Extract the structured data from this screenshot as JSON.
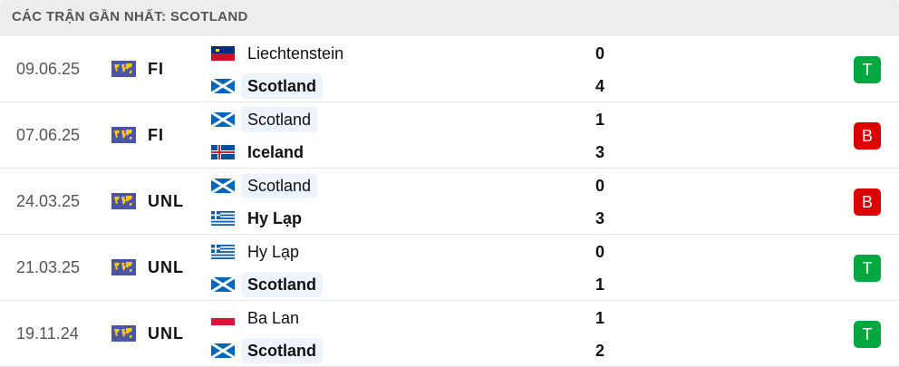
{
  "header": {
    "title": "CÁC TRẬN GẦN NHẤT: SCOTLAND"
  },
  "colors": {
    "win": "#00a83f",
    "loss": "#dd0000",
    "highlight": "#eef4fd"
  },
  "matches": [
    {
      "date": "09.06.25",
      "competition": "FI",
      "competition_icon": "world-map-icon",
      "home": {
        "name": "Liechtenstein",
        "flag": "liechtenstein",
        "score": "0"
      },
      "away": {
        "name": "Scotland",
        "flag": "scotland",
        "score": "4"
      },
      "result": "T",
      "result_type": "win",
      "winner": "away",
      "highlight": "away"
    },
    {
      "date": "07.06.25",
      "competition": "FI",
      "competition_icon": "world-map-icon",
      "home": {
        "name": "Scotland",
        "flag": "scotland",
        "score": "1"
      },
      "away": {
        "name": "Iceland",
        "flag": "iceland",
        "score": "3"
      },
      "result": "B",
      "result_type": "loss",
      "winner": "away",
      "highlight": "home"
    },
    {
      "date": "24.03.25",
      "competition": "UNL",
      "competition_icon": "world-map-icon",
      "home": {
        "name": "Scotland",
        "flag": "scotland",
        "score": "0"
      },
      "away": {
        "name": "Hy Lạp",
        "flag": "greece",
        "score": "3"
      },
      "result": "B",
      "result_type": "loss",
      "winner": "away",
      "highlight": "home"
    },
    {
      "date": "21.03.25",
      "competition": "UNL",
      "competition_icon": "world-map-icon",
      "home": {
        "name": "Hy Lạp",
        "flag": "greece",
        "score": "0"
      },
      "away": {
        "name": "Scotland",
        "flag": "scotland",
        "score": "1"
      },
      "result": "T",
      "result_type": "win",
      "winner": "away",
      "highlight": "away"
    },
    {
      "date": "19.11.24",
      "competition": "UNL",
      "competition_icon": "world-map-icon",
      "home": {
        "name": "Ba Lan",
        "flag": "poland",
        "score": "1"
      },
      "away": {
        "name": "Scotland",
        "flag": "scotland",
        "score": "2"
      },
      "result": "T",
      "result_type": "win",
      "winner": "away",
      "highlight": "away"
    }
  ]
}
